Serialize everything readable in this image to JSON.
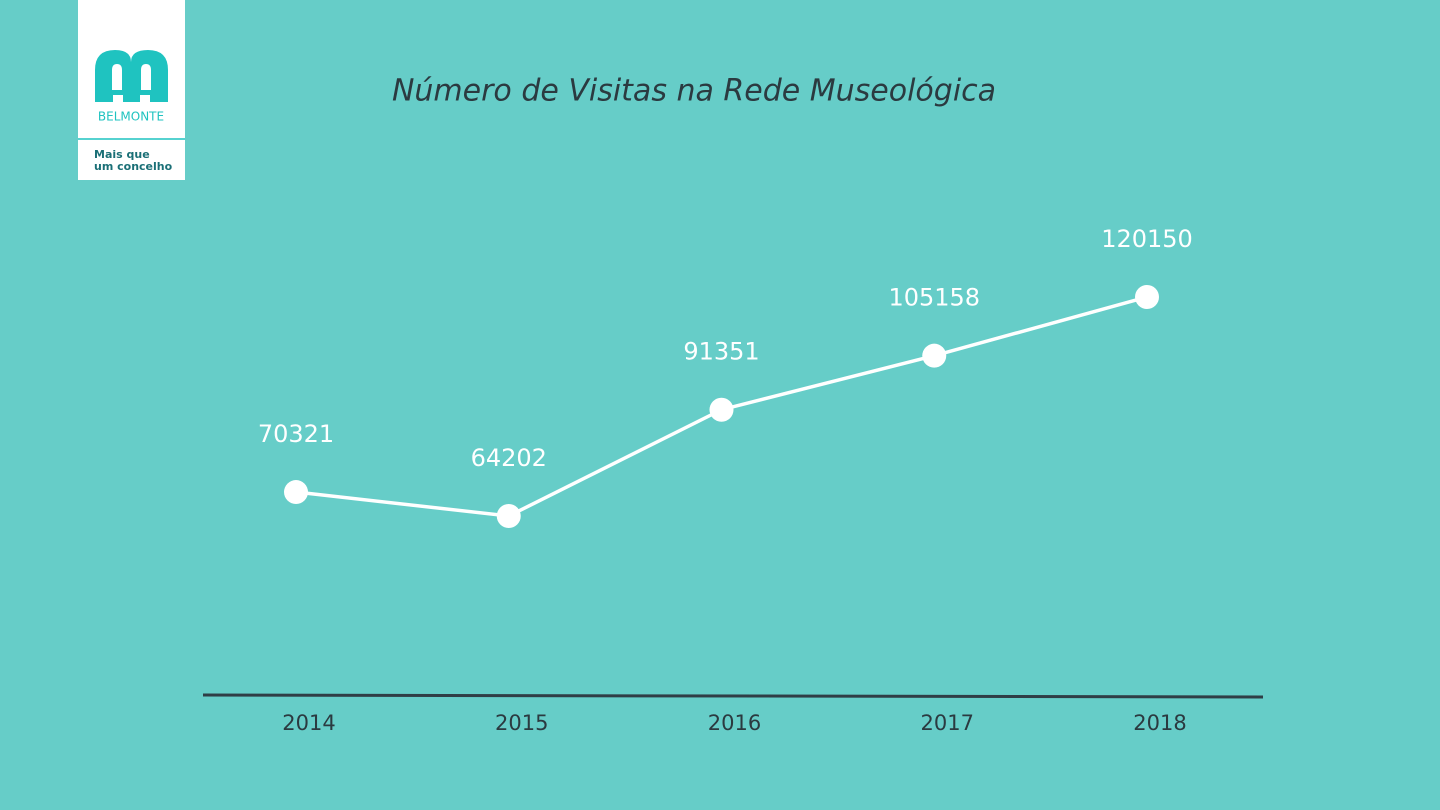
{
  "logo": {
    "name": "BELMONTE",
    "tagline": [
      "Mais que",
      "um concelho"
    ]
  },
  "chart_data": {
    "type": "line",
    "title": "Número de Visitas na Rede Museológica",
    "categories": [
      "2014",
      "2015",
      "2016",
      "2017",
      "2018"
    ],
    "values": [
      70321,
      64202,
      91351,
      105158,
      120150
    ],
    "color": "#ffffff"
  }
}
